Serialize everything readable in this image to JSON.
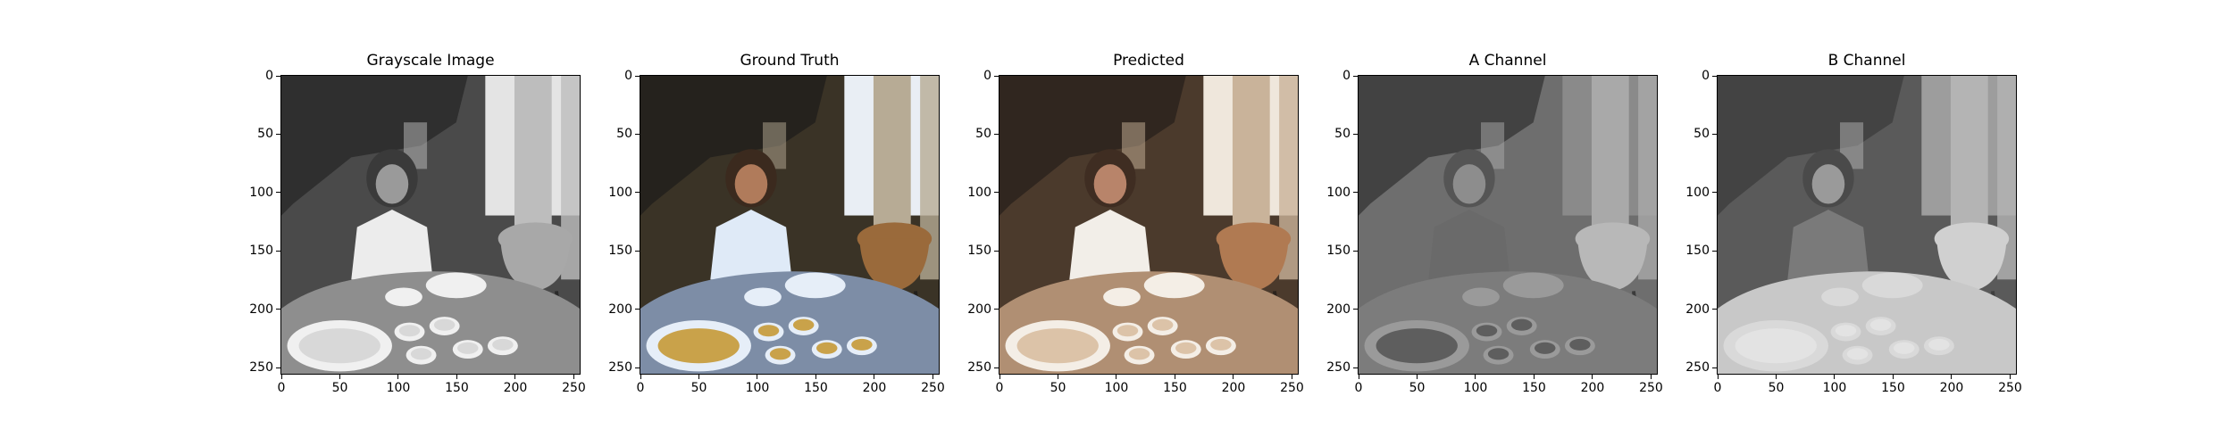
{
  "panels": [
    {
      "title": "Grayscale Image",
      "mode": "gray"
    },
    {
      "title": "Ground Truth",
      "mode": "truth"
    },
    {
      "title": "Predicted",
      "mode": "pred"
    },
    {
      "title": "A Channel",
      "mode": "achan"
    },
    {
      "title": "B Channel",
      "mode": "bchan"
    }
  ],
  "axis": {
    "x_ticks": [
      "0",
      "50",
      "100",
      "150",
      "200",
      "250"
    ],
    "y_ticks": [
      "0",
      "50",
      "100",
      "150",
      "200",
      "250"
    ],
    "x_values": [
      0,
      50,
      100,
      150,
      200,
      250
    ],
    "y_values": [
      0,
      50,
      100,
      150,
      200,
      250
    ],
    "range": [
      0,
      255
    ]
  },
  "palettes": {
    "gray": {
      "wall": "#4a4a4a",
      "window": "#e4e4e4",
      "curtain": "#bdbdbd",
      "coat": "#ececec",
      "skin": "#9a9a9a",
      "hair": "#3a3a3a",
      "table": "#8e8e8e",
      "pot": "#a8a8a8",
      "food": "#d8d8d8",
      "dish": "#f0f0f0",
      "dark": "#2a2a2a"
    },
    "truth": {
      "wall": "#3a3326",
      "window": "#e9eef4",
      "curtain": "#b7ab95",
      "coat": "#dfeaf7",
      "skin": "#b07b5b",
      "hair": "#3b2a1e",
      "table": "#7d8da6",
      "pot": "#9a6a3b",
      "food": "#c9a24a",
      "dish": "#e6eef8",
      "dark": "#22201c"
    },
    "pred": {
      "wall": "#4b3a2c",
      "window": "#efe7dc",
      "curtain": "#c9b39a",
      "coat": "#f2eee8",
      "skin": "#b8846a",
      "hair": "#3f2d22",
      "table": "#b08f73",
      "pot": "#b07a52",
      "food": "#dcc3a8",
      "dish": "#f4eee6",
      "dark": "#2b231d"
    },
    "achan": {
      "wall": "#6e6e6e",
      "window": "#8a8a8a",
      "curtain": "#a9a9a9",
      "coat": "#6a6a6a",
      "skin": "#8d8d8d",
      "hair": "#555555",
      "table": "#7c7c7c",
      "pot": "#b8b8b8",
      "food": "#5e5e5e",
      "dish": "#9a9a9a",
      "dark": "#3b3b3b"
    },
    "bchan": {
      "wall": "#5a5a5a",
      "window": "#9d9d9d",
      "curtain": "#b4b4b4",
      "coat": "#7a7a7a",
      "skin": "#9a9a9a",
      "hair": "#4a4a4a",
      "table": "#c8c8c8",
      "pot": "#d0d0d0",
      "food": "#e3e3e3",
      "dish": "#d9d9d9",
      "dark": "#3f3f3f"
    }
  }
}
